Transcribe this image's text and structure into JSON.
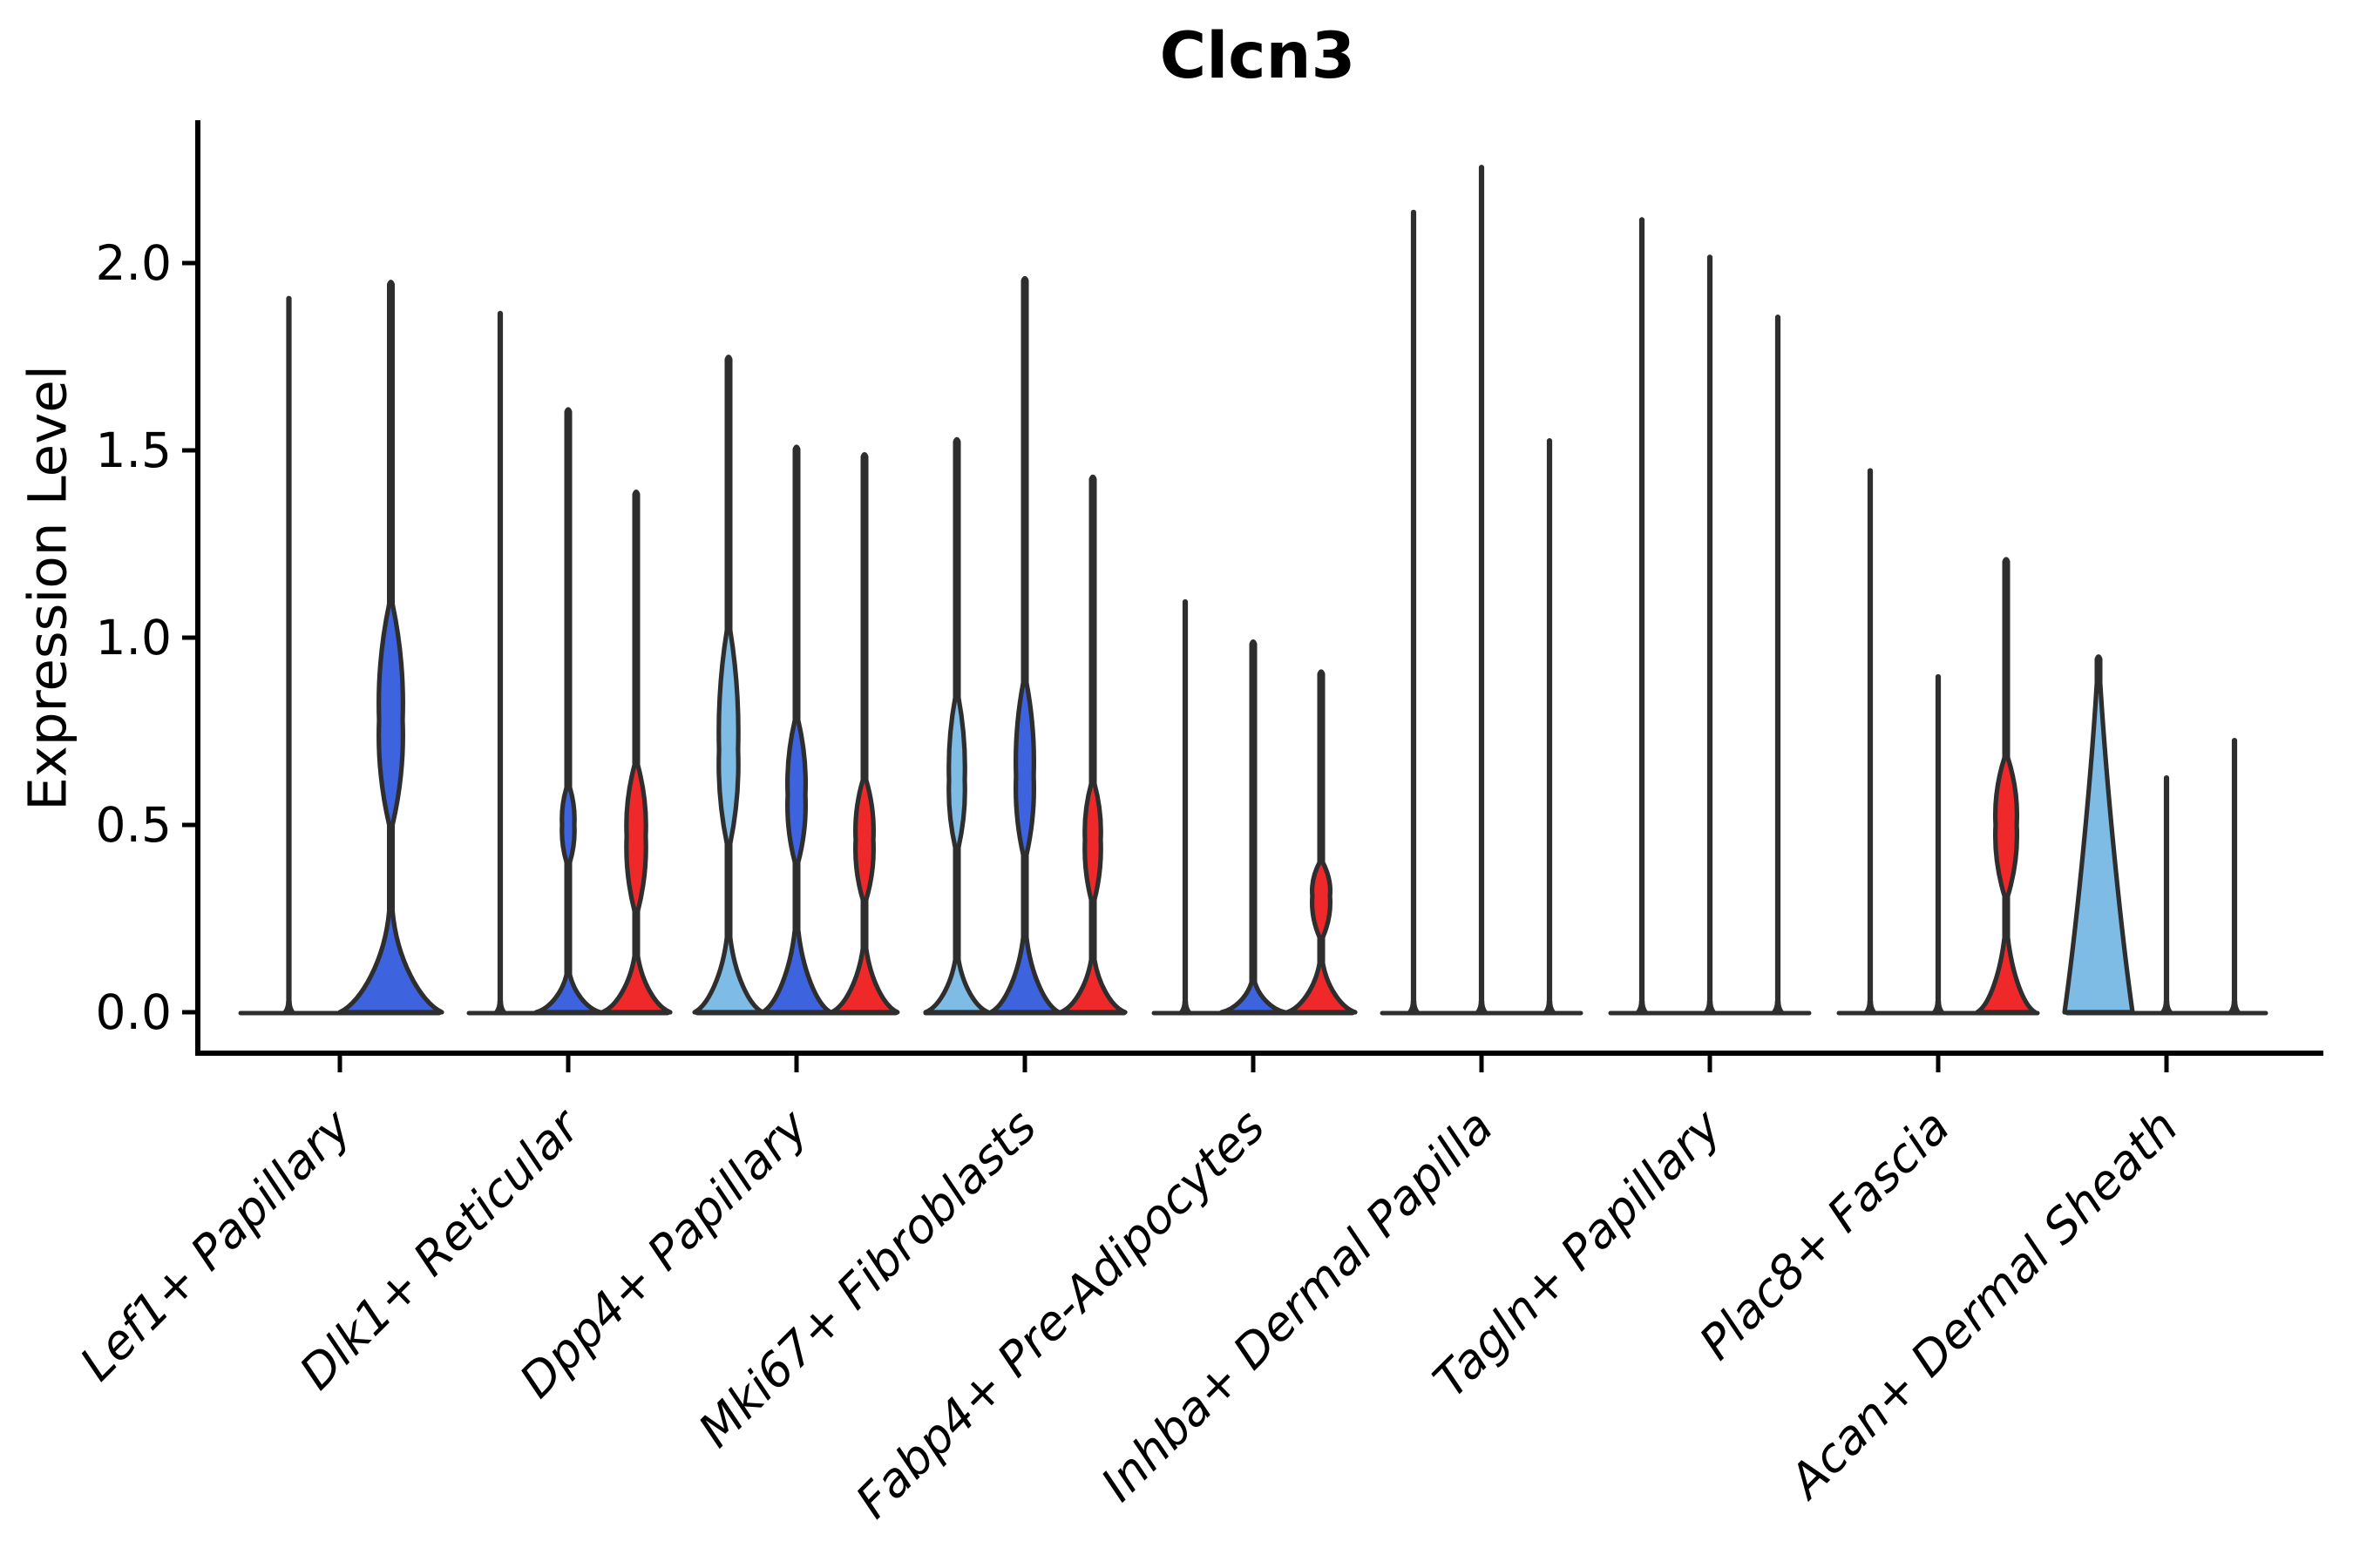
{
  "figure": {
    "title": "Clcn3",
    "ylabel": "Expression Level"
  },
  "chart_data": {
    "type": "violin",
    "title": "Clcn3",
    "ylabel": "Expression Level",
    "xlabel": "",
    "grid": false,
    "legend_position": "none",
    "ylim": [
      -0.11,
      2.38
    ],
    "yticks": [
      0.0,
      0.5,
      1.0,
      1.5,
      2.0
    ],
    "ytick_labels": [
      "0.0",
      "0.5",
      "1.0",
      "1.5",
      "2.0"
    ],
    "categories": [
      "Lef1+ Papillary",
      "Dlk1+ Reticular",
      "Dpp4+ Papillary",
      "Mki67+ Fibroblasts",
      "Fabp4+ Pre-Adipocytes",
      "Inhba+ Dermal Papilla",
      "Tagln+ Papillary",
      "Plac8+ Fascia",
      "Acan+ Dermal Sheath"
    ],
    "palette": {
      "lightblue": "#7EBCE6",
      "blue": "#3D63DE",
      "red": "#EF2929",
      "outline": "#2E2E2E",
      "axis": "#000000"
    },
    "groups": [
      {
        "category": "Lef1+ Papillary",
        "violins": [
          {
            "color": "lightblue",
            "max": 1.91,
            "shape": "line"
          },
          {
            "color": "blue",
            "max": 1.95,
            "shape": "bump_bulge",
            "base": {
              "hw": 1.0,
              "ext": 0.27
            },
            "bulge": {
              "lo": 0.5,
              "c": 0.78,
              "hi": 1.09,
              "hw": 0.23
            }
          }
        ]
      },
      {
        "category": "Dlk1+ Reticular",
        "violins": [
          {
            "color": "lightblue",
            "max": 1.87,
            "shape": "line"
          },
          {
            "color": "blue",
            "max": 1.61,
            "shape": "bump_bulge",
            "base": {
              "hw": 0.94,
              "ext": 0.1
            },
            "bulge": {
              "lo": 0.4,
              "c": 0.5,
              "hi": 0.6,
              "hw": 0.18
            }
          },
          {
            "color": "red",
            "max": 1.39,
            "shape": "bump_bulge",
            "base": {
              "hw": 1.0,
              "ext": 0.15
            },
            "bulge": {
              "lo": 0.27,
              "c": 0.47,
              "hi": 0.66,
              "hw": 0.28
            }
          }
        ]
      },
      {
        "category": "Dpp4+ Papillary",
        "violins": [
          {
            "color": "lightblue",
            "max": 1.75,
            "shape": "bump_bulge",
            "base": {
              "hw": 1.0,
              "ext": 0.2
            },
            "bulge": {
              "lo": 0.45,
              "c": 0.7,
              "hi": 1.02,
              "hw": 0.28
            }
          },
          {
            "color": "blue",
            "max": 1.51,
            "shape": "bump_bulge",
            "base": {
              "hw": 1.0,
              "ext": 0.22
            },
            "bulge": {
              "lo": 0.4,
              "c": 0.58,
              "hi": 0.78,
              "hw": 0.26
            }
          },
          {
            "color": "red",
            "max": 1.49,
            "shape": "bump_bulge",
            "base": {
              "hw": 0.97,
              "ext": 0.17
            },
            "bulge": {
              "lo": 0.3,
              "c": 0.46,
              "hi": 0.62,
              "hw": 0.26
            }
          }
        ]
      },
      {
        "category": "Mki67+ Fibroblasts",
        "violins": [
          {
            "color": "lightblue",
            "max": 1.53,
            "shape": "bump_bulge",
            "base": {
              "hw": 0.92,
              "ext": 0.14
            },
            "bulge": {
              "lo": 0.44,
              "c": 0.62,
              "hi": 0.84,
              "hw": 0.23
            }
          },
          {
            "color": "blue",
            "max": 1.96,
            "shape": "bump_bulge",
            "base": {
              "hw": 1.0,
              "ext": 0.2
            },
            "bulge": {
              "lo": 0.42,
              "c": 0.63,
              "hi": 0.88,
              "hw": 0.26
            }
          },
          {
            "color": "red",
            "max": 1.43,
            "shape": "bump_bulge",
            "base": {
              "hw": 0.95,
              "ext": 0.14
            },
            "bulge": {
              "lo": 0.3,
              "c": 0.46,
              "hi": 0.61,
              "hw": 0.23
            }
          }
        ]
      },
      {
        "category": "Fabp4+ Pre-Adipocytes",
        "violins": [
          {
            "color": "lightblue",
            "max": 1.1,
            "shape": "line"
          },
          {
            "color": "blue",
            "max": 0.99,
            "shape": "bump",
            "base": {
              "hw": 0.93,
              "ext": 0.08
            }
          },
          {
            "color": "red",
            "max": 0.91,
            "shape": "bump_bulge",
            "base": {
              "hw": 1.0,
              "ext": 0.13
            },
            "bulge": {
              "lo": 0.2,
              "c": 0.31,
              "hi": 0.4,
              "hw": 0.26
            }
          }
        ]
      },
      {
        "category": "Inhba+ Dermal Papilla",
        "violins": [
          {
            "color": "lightblue",
            "max": 2.14,
            "shape": "line"
          },
          {
            "color": "blue",
            "max": 2.26,
            "shape": "line"
          },
          {
            "color": "red",
            "max": 1.53,
            "shape": "line"
          }
        ]
      },
      {
        "category": "Tagln+ Papillary",
        "violins": [
          {
            "color": "lightblue",
            "max": 2.12,
            "shape": "line"
          },
          {
            "color": "blue",
            "max": 2.02,
            "shape": "line"
          },
          {
            "color": "red",
            "max": 1.86,
            "shape": "line"
          }
        ]
      },
      {
        "category": "Plac8+ Fascia",
        "violins": [
          {
            "color": "lightblue",
            "max": 1.45,
            "shape": "line"
          },
          {
            "color": "blue",
            "max": 0.9,
            "shape": "line"
          },
          {
            "color": "red",
            "max": 1.21,
            "shape": "bump_bulge",
            "base": {
              "hw": 0.85,
              "ext": 0.2
            },
            "bulge": {
              "lo": 0.31,
              "c": 0.5,
              "hi": 0.68,
              "hw": 0.31
            }
          }
        ]
      },
      {
        "category": "Acan+ Dermal Sheath",
        "violins": [
          {
            "color": "lightblue",
            "max": 0.95,
            "shape": "taper",
            "base": {
              "hw": 1.0,
              "ext": 0.88
            }
          },
          {
            "color": "blue",
            "max": 0.63,
            "shape": "line"
          },
          {
            "color": "red",
            "max": 0.73,
            "shape": "line"
          }
        ]
      }
    ]
  }
}
